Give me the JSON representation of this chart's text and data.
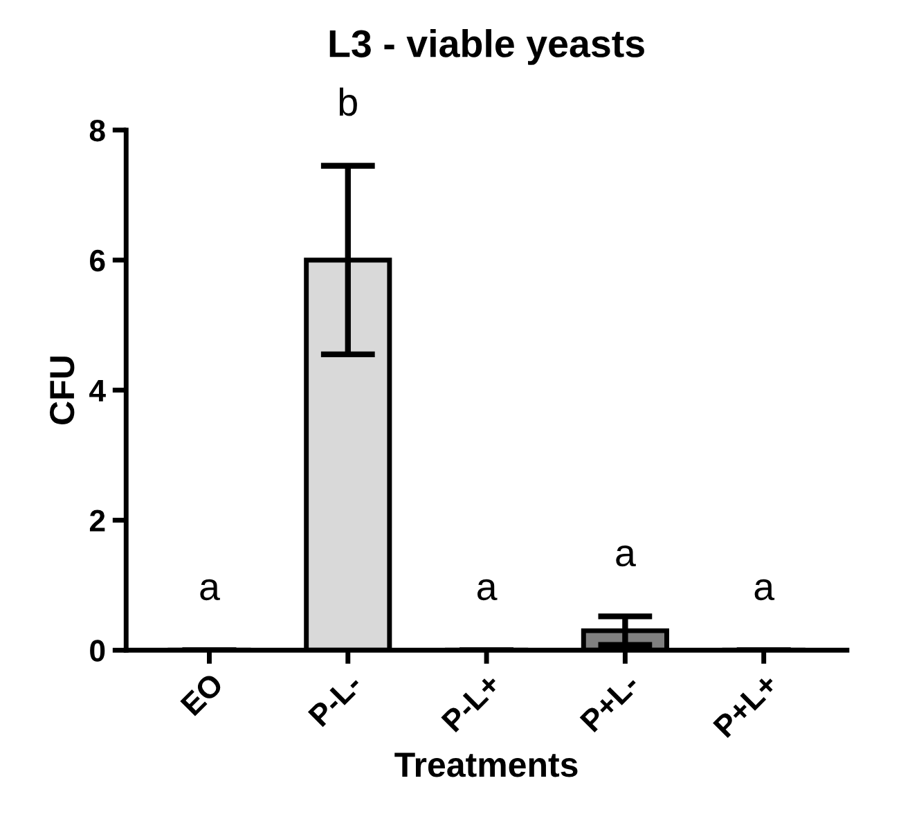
{
  "chart_data": {
    "type": "bar",
    "title": "L3 - viable yeasts",
    "xlabel": "Treatments",
    "ylabel": "CFU",
    "categories": [
      "EO",
      "P-L-",
      "P-L+",
      "P+L-",
      "P+L+"
    ],
    "values": [
      0,
      6.0,
      0,
      0.3,
      0
    ],
    "errors": [
      null,
      1.45,
      null,
      0.22,
      null
    ],
    "colors": [
      "#000000",
      "#d9d9d9",
      "#000000",
      "#808080",
      "#000000"
    ],
    "ylim": [
      0,
      8
    ],
    "yticks": [
      0,
      2,
      4,
      6,
      8
    ],
    "grid": false,
    "legend": false,
    "annotations": [
      "a",
      "b",
      "a",
      "a",
      "a"
    ]
  }
}
